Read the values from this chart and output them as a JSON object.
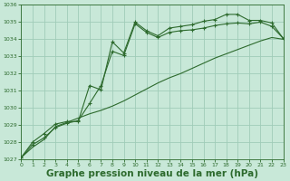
{
  "bg_color": "#c8e8d8",
  "line_color": "#2d6a2d",
  "grid_color": "#a0ccb8",
  "xlabel": "Graphe pression niveau de la mer (hPa)",
  "xlabel_fontsize": 7.5,
  "ylim": [
    1027,
    1036
  ],
  "xlim": [
    0,
    23
  ],
  "yticks": [
    1027,
    1028,
    1029,
    1030,
    1031,
    1032,
    1033,
    1034,
    1035,
    1036
  ],
  "xticks": [
    0,
    1,
    2,
    3,
    4,
    5,
    6,
    7,
    8,
    9,
    10,
    11,
    12,
    13,
    14,
    15,
    16,
    17,
    18,
    19,
    20,
    21,
    22,
    23
  ],
  "line1_x": [
    0,
    1,
    2,
    3,
    4,
    5,
    6,
    7,
    8,
    9,
    10,
    11,
    12,
    13,
    14,
    15,
    16,
    17,
    18,
    19,
    20,
    21,
    22,
    23
  ],
  "line1_y": [
    1027.1,
    1027.7,
    1028.15,
    1028.9,
    1029.15,
    1029.4,
    1029.65,
    1029.85,
    1030.1,
    1030.4,
    1030.75,
    1031.1,
    1031.45,
    1031.75,
    1032.0,
    1032.3,
    1032.6,
    1032.9,
    1033.15,
    1033.4,
    1033.65,
    1033.9,
    1034.1,
    1034.0
  ],
  "line2_x": [
    0,
    1,
    2,
    3,
    4,
    5,
    6,
    7,
    8,
    9,
    10,
    11,
    12,
    13,
    14,
    15,
    16,
    17,
    18,
    19,
    20,
    21,
    22,
    23
  ],
  "line2_y": [
    1027.1,
    1027.85,
    1028.25,
    1028.85,
    1029.1,
    1029.25,
    1030.25,
    1031.3,
    1033.3,
    1033.05,
    1034.9,
    1034.4,
    1034.1,
    1034.4,
    1034.5,
    1034.55,
    1034.65,
    1034.8,
    1034.9,
    1034.95,
    1034.9,
    1035.0,
    1034.75,
    1034.05
  ],
  "line3_x": [
    0,
    1,
    2,
    3,
    4,
    5,
    6,
    7,
    8,
    9,
    10,
    11,
    12,
    13,
    14,
    15,
    16,
    17,
    18,
    19,
    20,
    21,
    22,
    23
  ],
  "line3_y": [
    1027.1,
    1028.0,
    1028.5,
    1029.05,
    1029.2,
    1029.2,
    1031.3,
    1031.05,
    1033.85,
    1033.2,
    1035.0,
    1034.5,
    1034.2,
    1034.65,
    1034.75,
    1034.85,
    1035.05,
    1035.15,
    1035.45,
    1035.45,
    1035.1,
    1035.1,
    1034.95,
    1034.05
  ]
}
